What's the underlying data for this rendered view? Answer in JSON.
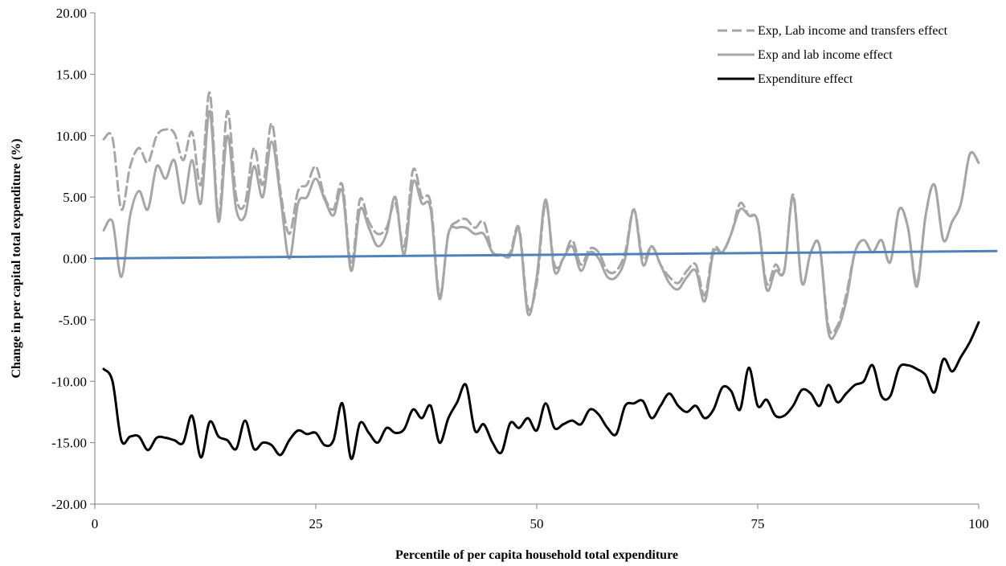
{
  "chart_data": {
    "type": "line",
    "title": "",
    "xlabel": "Percentile of per capita household total expenditure",
    "ylabel": "Change in per capital total expenditure (%)",
    "xlim": [
      0,
      100
    ],
    "ylim": [
      -20,
      20
    ],
    "x_ticks": [
      0,
      25,
      50,
      75,
      100
    ],
    "x_tick_labels": [
      "0",
      "25",
      "50",
      "75",
      "100"
    ],
    "y_ticks": [
      20,
      15,
      10,
      5,
      0,
      -5,
      -10,
      -15,
      -20
    ],
    "y_tick_labels": [
      "20.00",
      "15.00",
      "10.00",
      "5.00",
      "0.00",
      "-5.00",
      "-10.00",
      "-15.00",
      "-20.00"
    ],
    "grid": false,
    "legend_position": "top-right",
    "series": [
      {
        "name": "Exp, Lab income and transfers effect",
        "color": "#a6a6a6",
        "dash": "dashed",
        "x": [
          1,
          2,
          3,
          4,
          5,
          6,
          7,
          8,
          9,
          10,
          11,
          12,
          13,
          14,
          15,
          16,
          17,
          18,
          19,
          20,
          21,
          22,
          23,
          24,
          25,
          26,
          27,
          28,
          29,
          30,
          31,
          32,
          33,
          34,
          35,
          36,
          37,
          38,
          39,
          40,
          41,
          42,
          43,
          44,
          45,
          46,
          47,
          48,
          49,
          50,
          51,
          52,
          53,
          54,
          55,
          56,
          57,
          58,
          59,
          60,
          61,
          62,
          63,
          64,
          65,
          66,
          67,
          68,
          69,
          70,
          71,
          72,
          73,
          74,
          75,
          76,
          77,
          78,
          79,
          80,
          81,
          82,
          83,
          84,
          85,
          86,
          87,
          88,
          89,
          90,
          91,
          92,
          93,
          94,
          95,
          96,
          97,
          98,
          99,
          100
        ],
        "values": [
          9.7,
          9.8,
          4.0,
          7.5,
          9.0,
          7.8,
          10.0,
          10.5,
          10.2,
          8.0,
          10.3,
          6.0,
          13.5,
          3.5,
          12.0,
          5.0,
          4.5,
          9.0,
          6.0,
          11.0,
          5.5,
          2.0,
          5.5,
          6.0,
          7.5,
          5.0,
          4.0,
          6.0,
          -0.5,
          4.8,
          3.0,
          2.0,
          2.5,
          4.5,
          1.0,
          7.2,
          5.0,
          4.5,
          -3.0,
          2.0,
          3.0,
          3.2,
          2.5,
          3.0,
          0.5,
          0.3,
          0.5,
          2.5,
          -4.0,
          -2.0,
          4.5,
          -0.5,
          0.0,
          1.5,
          -0.5,
          0.8,
          0.5,
          -1.0,
          -1.0,
          0.5,
          4.0,
          0.0,
          1.0,
          -0.5,
          -1.5,
          -2.0,
          -1.0,
          -0.5,
          -3.0,
          0.8,
          0.5,
          2.0,
          4.5,
          3.5,
          3.0,
          -2.0,
          -0.5,
          -1.0,
          5.2,
          -2.0,
          0.5,
          1.0,
          -5.5,
          -5.5,
          -3.0,
          0.5,
          1.5,
          0.5,
          1.5,
          -0.3,
          4.0,
          2.5,
          -2.0,
          3.5,
          6.0,
          1.5,
          3.0,
          4.5,
          8.5,
          7.8
        ]
      },
      {
        "name": "Exp and lab income effect",
        "color": "#a6a6a6",
        "dash": "solid",
        "x": [
          1,
          2,
          3,
          4,
          5,
          6,
          7,
          8,
          9,
          10,
          11,
          12,
          13,
          14,
          15,
          16,
          17,
          18,
          19,
          20,
          21,
          22,
          23,
          24,
          25,
          26,
          27,
          28,
          29,
          30,
          31,
          32,
          33,
          34,
          35,
          36,
          37,
          38,
          39,
          40,
          41,
          42,
          43,
          44,
          45,
          46,
          47,
          48,
          49,
          50,
          51,
          52,
          53,
          54,
          55,
          56,
          57,
          58,
          59,
          60,
          61,
          62,
          63,
          64,
          65,
          66,
          67,
          68,
          69,
          70,
          71,
          72,
          73,
          74,
          75,
          76,
          77,
          78,
          79,
          80,
          81,
          82,
          83,
          84,
          85,
          86,
          87,
          88,
          89,
          90,
          91,
          92,
          93,
          94,
          95,
          96,
          97,
          98,
          99,
          100
        ],
        "values": [
          2.3,
          3.0,
          -1.5,
          3.5,
          5.5,
          4.0,
          7.5,
          6.5,
          8.0,
          4.5,
          8.0,
          4.5,
          12.0,
          3.0,
          10.0,
          4.0,
          3.5,
          7.5,
          5.0,
          9.5,
          5.0,
          0.0,
          4.5,
          5.0,
          6.5,
          4.8,
          3.5,
          5.5,
          -1.0,
          4.0,
          2.5,
          1.0,
          2.0,
          5.0,
          0.3,
          6.2,
          4.5,
          4.0,
          -3.3,
          2.0,
          2.5,
          2.5,
          2.0,
          2.0,
          0.5,
          0.3,
          0.2,
          2.3,
          -4.5,
          -1.5,
          4.8,
          -1.0,
          0.0,
          1.0,
          -1.0,
          0.5,
          0.0,
          -1.5,
          -1.5,
          0.0,
          4.0,
          -0.5,
          1.0,
          -0.5,
          -2.0,
          -2.5,
          -1.5,
          -1.0,
          -3.5,
          0.5,
          0.5,
          2.0,
          4.0,
          3.5,
          3.0,
          -2.5,
          -1.0,
          -1.0,
          5.0,
          -2.0,
          0.5,
          1.0,
          -6.0,
          -5.8,
          -3.5,
          0.5,
          1.5,
          0.5,
          1.5,
          -0.3,
          4.0,
          2.5,
          -2.3,
          3.5,
          6.0,
          1.5,
          3.0,
          4.5,
          8.5,
          7.8
        ]
      },
      {
        "name": "Expenditure effect",
        "color": "#000000",
        "dash": "solid",
        "x": [
          1,
          2,
          3,
          4,
          5,
          6,
          7,
          8,
          9,
          10,
          11,
          12,
          13,
          14,
          15,
          16,
          17,
          18,
          19,
          20,
          21,
          22,
          23,
          24,
          25,
          26,
          27,
          28,
          29,
          30,
          31,
          32,
          33,
          34,
          35,
          36,
          37,
          38,
          39,
          40,
          41,
          42,
          43,
          44,
          45,
          46,
          47,
          48,
          49,
          50,
          51,
          52,
          53,
          54,
          55,
          56,
          57,
          58,
          59,
          60,
          61,
          62,
          63,
          64,
          65,
          66,
          67,
          68,
          69,
          70,
          71,
          72,
          73,
          74,
          75,
          76,
          77,
          78,
          79,
          80,
          81,
          82,
          83,
          84,
          85,
          86,
          87,
          88,
          89,
          90,
          91,
          92,
          93,
          94,
          95,
          96,
          97,
          98,
          99,
          100
        ],
        "values": [
          -9.0,
          -10.0,
          -14.8,
          -14.5,
          -14.5,
          -15.6,
          -14.6,
          -14.6,
          -14.8,
          -15.0,
          -12.8,
          -16.2,
          -13.3,
          -14.5,
          -14.8,
          -15.5,
          -13.2,
          -15.5,
          -15.0,
          -15.2,
          -16.0,
          -14.8,
          -14.0,
          -14.3,
          -14.2,
          -15.2,
          -14.8,
          -11.8,
          -16.3,
          -13.4,
          -14.2,
          -15.0,
          -13.8,
          -14.2,
          -13.9,
          -12.3,
          -13.0,
          -12.0,
          -15.0,
          -13.0,
          -11.7,
          -10.3,
          -14.0,
          -13.5,
          -15.0,
          -15.8,
          -13.4,
          -13.8,
          -13.0,
          -14.0,
          -11.8,
          -13.8,
          -13.5,
          -13.2,
          -13.5,
          -12.3,
          -12.7,
          -13.8,
          -14.3,
          -12.0,
          -11.8,
          -11.6,
          -13.0,
          -12.0,
          -11.0,
          -12.0,
          -12.5,
          -12.0,
          -13.0,
          -12.3,
          -10.5,
          -10.8,
          -12.3,
          -8.9,
          -12.0,
          -11.5,
          -12.8,
          -12.8,
          -12.0,
          -10.7,
          -11.0,
          -12.0,
          -10.3,
          -11.7,
          -11.0,
          -10.3,
          -10.0,
          -8.7,
          -11.2,
          -11.2,
          -8.9,
          -8.7,
          -9.0,
          -9.5,
          -10.9,
          -8.2,
          -9.2,
          -8.0,
          -6.8,
          -5.2
        ]
      },
      {
        "name": "",
        "color": "#4f81bd",
        "dash": "solid",
        "x": [
          0,
          102
        ],
        "values": [
          0.0,
          0.6
        ]
      }
    ]
  },
  "legend": [
    {
      "label": "Exp, Lab income and transfers effect",
      "color": "#a6a6a6",
      "dash": "dashed"
    },
    {
      "label": "Exp and lab income effect",
      "color": "#a6a6a6",
      "dash": "solid"
    },
    {
      "label": "Expenditure effect",
      "color": "#000000",
      "dash": "solid"
    }
  ]
}
